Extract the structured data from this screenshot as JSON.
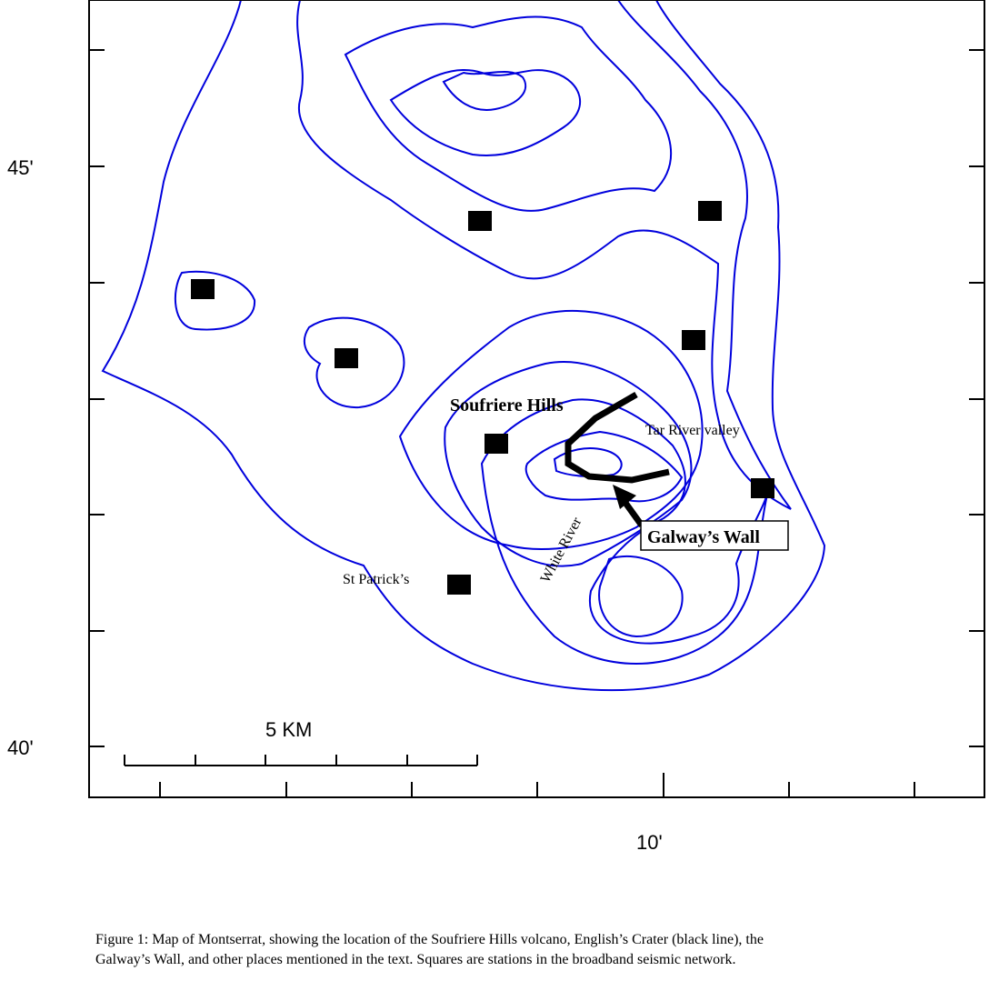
{
  "map": {
    "lat_labels": [
      "45'",
      "40'"
    ],
    "lon_labels": [
      "10'"
    ],
    "scale_label": "5 KM",
    "places": {
      "soufriere": "Soufriere Hills",
      "tar_river": "Tar River valley",
      "white_river": "White River",
      "galway": "Galway’s Wall",
      "st_patrick": "St Patrick’s"
    }
  },
  "caption": [
    "Figure 1:  Map of Montserrat, showing the location of the Soufriere Hills volcano, English’s Crater (black line), the",
    "Galway’s Wall, and other places mentioned in the text. Squares are stations in the broadband seismic network."
  ]
}
